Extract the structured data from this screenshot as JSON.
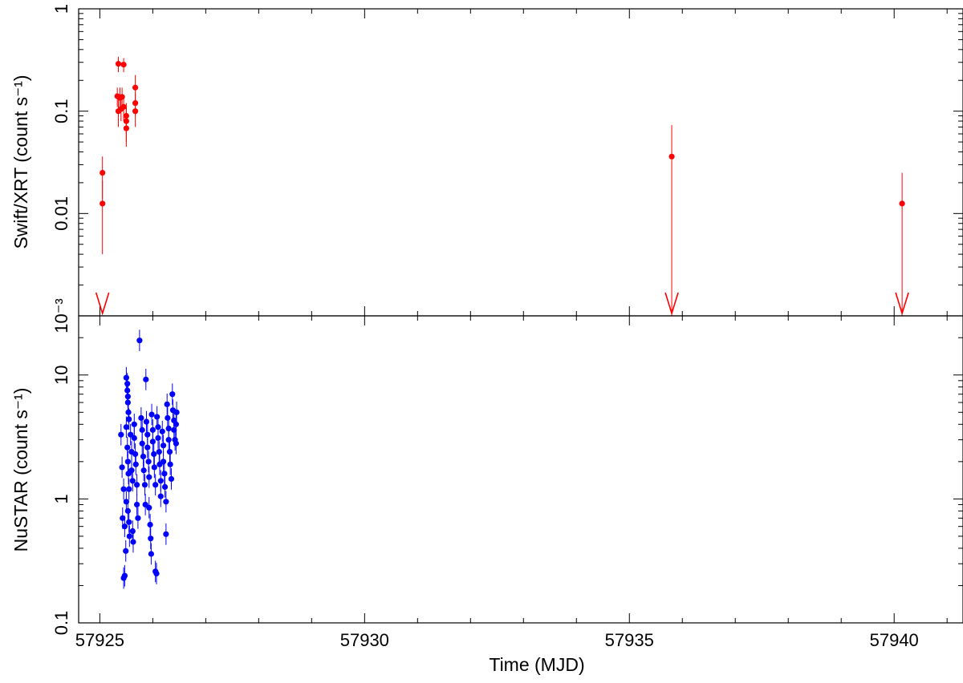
{
  "chart_data": [
    {
      "id": "top",
      "type": "scatter",
      "ylabel": "Swift/XRT (count s⁻¹)",
      "yscale": "log",
      "ylim": [
        0.001,
        1
      ],
      "yticks": [
        {
          "value": 1,
          "label": "1"
        },
        {
          "value": 0.1,
          "label": "0.1"
        },
        {
          "value": 0.01,
          "label": "0.01"
        },
        {
          "value": 0.001,
          "label": "10⁻³"
        }
      ],
      "color": "#ff0000",
      "points": [
        {
          "x": 57925.05,
          "y": 0.025,
          "lo": 0.014,
          "hi": 0.036
        },
        {
          "x": 57925.05,
          "y": 0.0125,
          "lo": 0.004,
          "hi": 0.021
        },
        {
          "x": 57925.35,
          "y": 0.29,
          "lo": 0.24,
          "hi": 0.34
        },
        {
          "x": 57925.45,
          "y": 0.285,
          "lo": 0.24,
          "hi": 0.33
        },
        {
          "x": 57925.33,
          "y": 0.14,
          "lo": 0.11,
          "hi": 0.17
        },
        {
          "x": 57925.38,
          "y": 0.135,
          "lo": 0.1,
          "hi": 0.17
        },
        {
          "x": 57925.42,
          "y": 0.138,
          "lo": 0.1,
          "hi": 0.17
        },
        {
          "x": 57925.35,
          "y": 0.1,
          "lo": 0.07,
          "hi": 0.13
        },
        {
          "x": 57925.4,
          "y": 0.105,
          "lo": 0.08,
          "hi": 0.13
        },
        {
          "x": 57925.45,
          "y": 0.11,
          "lo": 0.08,
          "hi": 0.14
        },
        {
          "x": 57925.5,
          "y": 0.09,
          "lo": 0.06,
          "hi": 0.12
        },
        {
          "x": 57925.5,
          "y": 0.08,
          "lo": 0.05,
          "hi": 0.11
        },
        {
          "x": 57925.5,
          "y": 0.068,
          "lo": 0.045,
          "hi": 0.09
        },
        {
          "x": 57925.67,
          "y": 0.17,
          "lo": 0.12,
          "hi": 0.225
        },
        {
          "x": 57925.67,
          "y": 0.12,
          "lo": 0.09,
          "hi": 0.15
        },
        {
          "x": 57925.67,
          "y": 0.1,
          "lo": 0.07,
          "hi": 0.13
        },
        {
          "x": 57935.8,
          "y": 0.036,
          "lo": 0.001,
          "hi": 0.073
        },
        {
          "x": 57940.15,
          "y": 0.0125,
          "lo": 0.001,
          "hi": 0.025
        }
      ],
      "upper_limits": [
        57925.05,
        57935.8,
        57940.15
      ]
    },
    {
      "id": "bottom",
      "type": "scatter",
      "ylabel": "NuSTAR (count s⁻¹)",
      "yscale": "log",
      "ylim": [
        0.1,
        30
      ],
      "yticks": [
        {
          "value": 10,
          "label": "10"
        },
        {
          "value": 1,
          "label": "1"
        },
        {
          "value": 0.1,
          "label": "0.1"
        }
      ],
      "color": "#0000ff",
      "xlabel": "Time (MJD)",
      "xlim": [
        57924.6,
        57941.3
      ],
      "xticks": [
        {
          "value": 57925,
          "label": "57925"
        },
        {
          "value": 57930,
          "label": "57930"
        },
        {
          "value": 57935,
          "label": "57935"
        },
        {
          "value": 57940,
          "label": "57940"
        }
      ],
      "points": [
        {
          "x": 57925.4,
          "y": 3.3
        },
        {
          "x": 57925.42,
          "y": 1.8
        },
        {
          "x": 57925.45,
          "y": 0.23
        },
        {
          "x": 57925.47,
          "y": 0.24
        },
        {
          "x": 57925.43,
          "y": 0.7
        },
        {
          "x": 57925.45,
          "y": 1.2
        },
        {
          "x": 57925.47,
          "y": 0.6
        },
        {
          "x": 57925.49,
          "y": 0.38
        },
        {
          "x": 57925.5,
          "y": 9.5
        },
        {
          "x": 57925.52,
          "y": 8.5
        },
        {
          "x": 57925.52,
          "y": 7.5
        },
        {
          "x": 57925.53,
          "y": 6.7
        },
        {
          "x": 57925.53,
          "y": 6.0
        },
        {
          "x": 57925.54,
          "y": 5.0
        },
        {
          "x": 57925.55,
          "y": 4.4
        },
        {
          "x": 57925.5,
          "y": 3.8
        },
        {
          "x": 57925.52,
          "y": 2.6
        },
        {
          "x": 57925.53,
          "y": 2.0
        },
        {
          "x": 57925.54,
          "y": 1.6
        },
        {
          "x": 57925.55,
          "y": 1.2
        },
        {
          "x": 57925.5,
          "y": 0.95
        },
        {
          "x": 57925.53,
          "y": 0.8
        },
        {
          "x": 57925.55,
          "y": 0.65
        },
        {
          "x": 57925.56,
          "y": 0.5
        },
        {
          "x": 57925.58,
          "y": 3.3
        },
        {
          "x": 57925.6,
          "y": 2.4
        },
        {
          "x": 57925.6,
          "y": 1.7
        },
        {
          "x": 57925.62,
          "y": 1.4
        },
        {
          "x": 57925.62,
          "y": 0.55
        },
        {
          "x": 57925.63,
          "y": 0.45
        },
        {
          "x": 57925.65,
          "y": 4.0
        },
        {
          "x": 57925.65,
          "y": 3.1
        },
        {
          "x": 57925.67,
          "y": 2.3
        },
        {
          "x": 57925.68,
          "y": 1.9
        },
        {
          "x": 57925.7,
          "y": 1.3
        },
        {
          "x": 57925.7,
          "y": 0.9
        },
        {
          "x": 57925.72,
          "y": 0.7
        },
        {
          "x": 57925.75,
          "y": 19.0
        },
        {
          "x": 57925.78,
          "y": 4.5
        },
        {
          "x": 57925.8,
          "y": 3.6
        },
        {
          "x": 57925.8,
          "y": 2.8
        },
        {
          "x": 57925.82,
          "y": 2.2
        },
        {
          "x": 57925.83,
          "y": 1.7
        },
        {
          "x": 57925.85,
          "y": 1.3
        },
        {
          "x": 57925.86,
          "y": 0.9
        },
        {
          "x": 57925.87,
          "y": 9.2
        },
        {
          "x": 57925.88,
          "y": 4.2
        },
        {
          "x": 57925.9,
          "y": 3.3
        },
        {
          "x": 57925.9,
          "y": 2.6
        },
        {
          "x": 57925.92,
          "y": 2.0
        },
        {
          "x": 57925.93,
          "y": 1.5
        },
        {
          "x": 57925.93,
          "y": 0.85
        },
        {
          "x": 57925.95,
          "y": 0.62
        },
        {
          "x": 57925.96,
          "y": 0.48
        },
        {
          "x": 57925.97,
          "y": 0.36
        },
        {
          "x": 57925.98,
          "y": 4.8
        },
        {
          "x": 57926.0,
          "y": 3.6
        },
        {
          "x": 57926.0,
          "y": 2.9
        },
        {
          "x": 57926.02,
          "y": 2.3
        },
        {
          "x": 57926.03,
          "y": 1.8
        },
        {
          "x": 57926.05,
          "y": 1.3
        },
        {
          "x": 57926.05,
          "y": 0.26
        },
        {
          "x": 57926.07,
          "y": 0.25
        },
        {
          "x": 57926.08,
          "y": 4.6
        },
        {
          "x": 57926.1,
          "y": 3.8
        },
        {
          "x": 57926.1,
          "y": 3.1
        },
        {
          "x": 57926.12,
          "y": 2.4
        },
        {
          "x": 57926.13,
          "y": 1.9
        },
        {
          "x": 57926.15,
          "y": 1.4
        },
        {
          "x": 57926.15,
          "y": 1.05
        },
        {
          "x": 57926.18,
          "y": 3.5
        },
        {
          "x": 57926.2,
          "y": 2.7
        },
        {
          "x": 57926.2,
          "y": 2.0
        },
        {
          "x": 57926.22,
          "y": 1.6
        },
        {
          "x": 57926.23,
          "y": 1.25
        },
        {
          "x": 57926.25,
          "y": 0.95
        },
        {
          "x": 57926.25,
          "y": 0.52
        },
        {
          "x": 57926.27,
          "y": 5.8
        },
        {
          "x": 57926.28,
          "y": 4.5
        },
        {
          "x": 57926.3,
          "y": 3.7
        },
        {
          "x": 57926.3,
          "y": 3.0
        },
        {
          "x": 57926.32,
          "y": 2.4
        },
        {
          "x": 57926.33,
          "y": 1.9
        },
        {
          "x": 57926.35,
          "y": 1.45
        },
        {
          "x": 57926.37,
          "y": 7.0
        },
        {
          "x": 57926.38,
          "y": 5.2
        },
        {
          "x": 57926.4,
          "y": 4.3
        },
        {
          "x": 57926.4,
          "y": 3.6
        },
        {
          "x": 57926.42,
          "y": 3.0
        },
        {
          "x": 57926.44,
          "y": 4.0
        },
        {
          "x": 57926.45,
          "y": 5.0
        },
        {
          "x": 57926.44,
          "y": 2.8
        }
      ]
    }
  ]
}
